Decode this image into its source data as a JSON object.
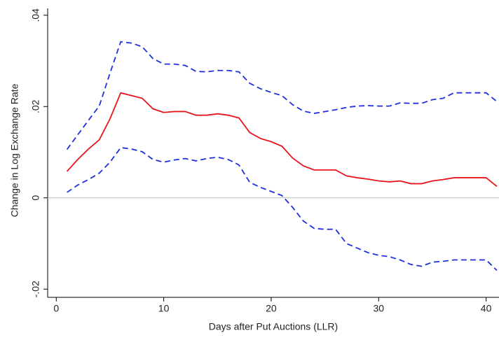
{
  "chart_data": {
    "type": "line",
    "xlabel": "Days after Put Auctions (LLR)",
    "ylabel": "Change in Log Exchange Rate",
    "x": [
      1,
      2,
      3,
      4,
      5,
      6,
      7,
      8,
      9,
      10,
      11,
      12,
      13,
      14,
      15,
      16,
      17,
      18,
      19,
      20,
      21,
      22,
      23,
      24,
      25,
      26,
      27,
      28,
      29,
      30,
      31,
      32,
      33,
      34,
      35,
      36,
      37,
      38,
      39,
      40,
      41
    ],
    "series": [
      {
        "color": "#1f2fe0",
        "dashed": true,
        "values": [
          0.0106,
          0.0138,
          0.017,
          0.0201,
          0.0273,
          0.0342,
          0.0339,
          0.0331,
          0.0305,
          0.0293,
          0.0293,
          0.029,
          0.0277,
          0.0276,
          0.0279,
          0.0279,
          0.0276,
          0.0251,
          0.0239,
          0.0231,
          0.0224,
          0.0204,
          0.019,
          0.0185,
          0.0189,
          0.0193,
          0.0198,
          0.0201,
          0.0202,
          0.0201,
          0.0201,
          0.0208,
          0.0207,
          0.0207,
          0.0215,
          0.0218,
          0.023,
          0.023,
          0.023,
          0.023,
          0.0211
        ]
      },
      {
        "color": "#e8141b",
        "dashed": false,
        "values": [
          0.0058,
          0.0084,
          0.0107,
          0.0127,
          0.0173,
          0.023,
          0.0224,
          0.0218,
          0.0195,
          0.0187,
          0.0189,
          0.0189,
          0.0181,
          0.0181,
          0.0184,
          0.0181,
          0.0175,
          0.0143,
          0.013,
          0.0123,
          0.0113,
          0.0087,
          0.007,
          0.0061,
          0.0061,
          0.0061,
          0.0048,
          0.0044,
          0.0041,
          0.0037,
          0.0035,
          0.0037,
          0.0031,
          0.0031,
          0.0037,
          0.004,
          0.0044,
          0.0044,
          0.0044,
          0.0044,
          0.0025
        ]
      },
      {
        "color": "#1f2fe0",
        "dashed": true,
        "values": [
          0.0012,
          0.0028,
          0.004,
          0.0054,
          0.0078,
          0.011,
          0.0107,
          0.0101,
          0.0084,
          0.0078,
          0.0083,
          0.0086,
          0.0081,
          0.0086,
          0.0089,
          0.0084,
          0.0072,
          0.0034,
          0.0023,
          0.0014,
          0.0005,
          -0.0021,
          -0.0051,
          -0.0067,
          -0.0069,
          -0.0069,
          -0.01,
          -0.011,
          -0.012,
          -0.0126,
          -0.0129,
          -0.0136,
          -0.0146,
          -0.015,
          -0.0141,
          -0.0139,
          -0.0136,
          -0.0136,
          -0.0136,
          -0.0136,
          -0.0159
        ]
      }
    ],
    "reference_line": 0,
    "xlim": [
      -0.8,
      41.2
    ],
    "ylim": [
      -0.0218,
      0.0415
    ],
    "xticks": [
      0,
      10,
      20,
      30,
      40
    ],
    "yticks": [
      {
        "value": -0.02,
        "label": "-.02"
      },
      0,
      {
        "value": 0.02,
        "label": ".02"
      },
      {
        "value": 0.04,
        "label": ".04"
      }
    ],
    "grid": false
  }
}
